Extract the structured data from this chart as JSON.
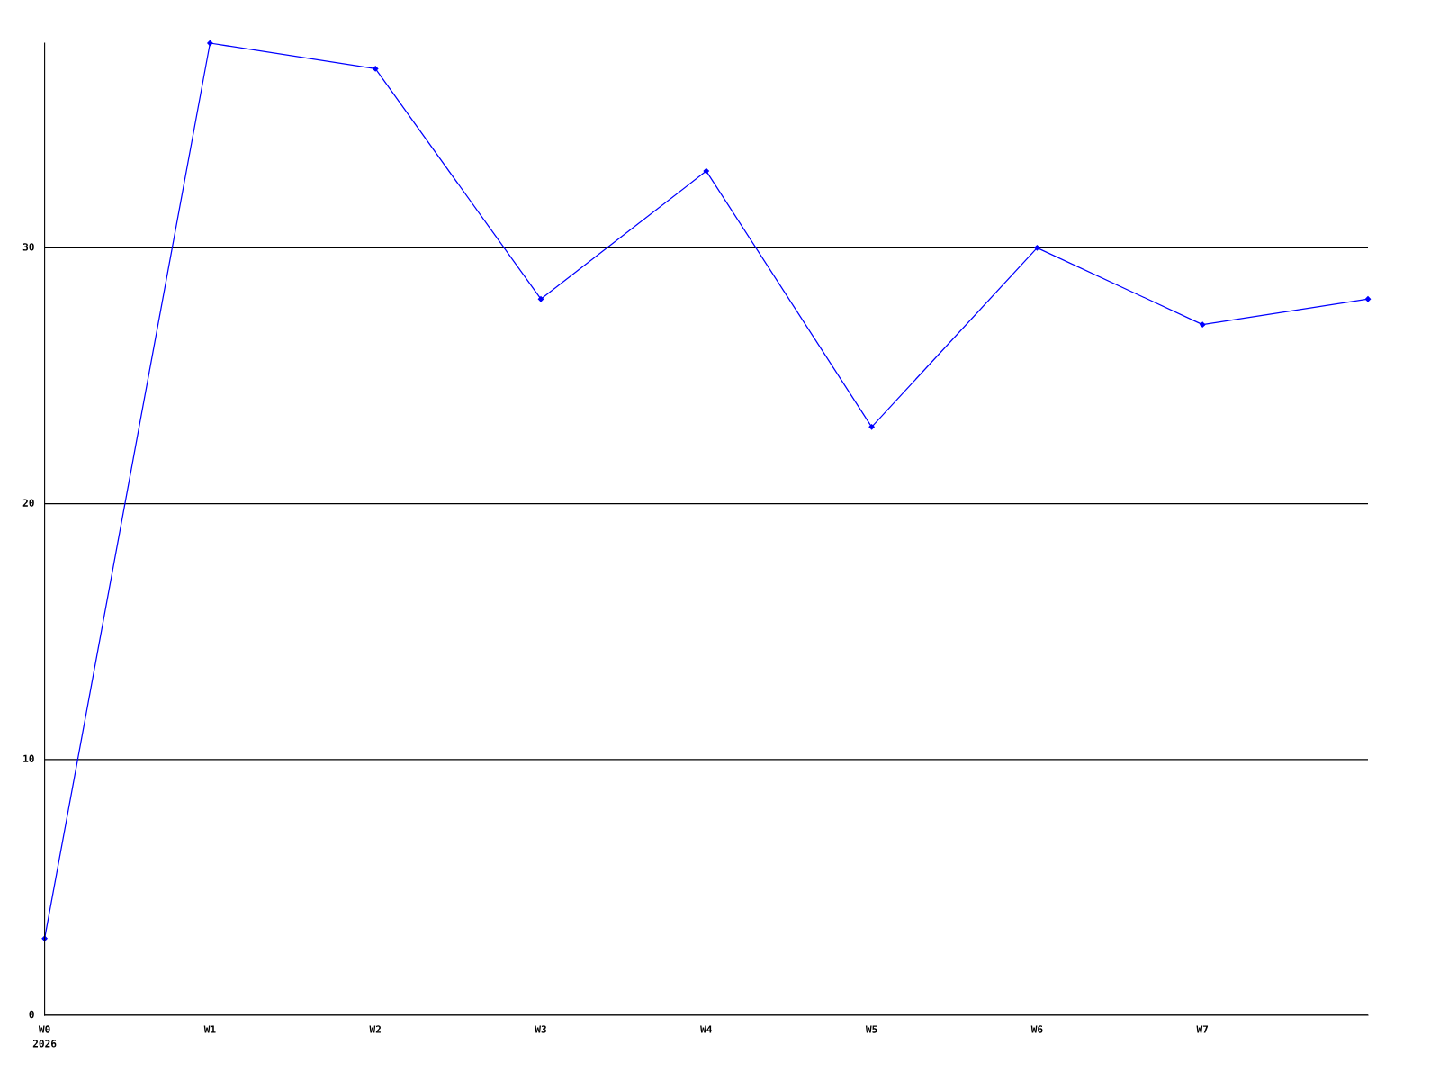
{
  "chart_data": {
    "type": "line",
    "categories": [
      "W0",
      "W1",
      "W2",
      "W3",
      "W4",
      "W5",
      "W6",
      "W7",
      null
    ],
    "series": [
      {
        "color": "#0000ff",
        "values": [
          3,
          38,
          37,
          28,
          33,
          23,
          30,
          27,
          28
        ]
      }
    ],
    "ylim": [
      0,
      38
    ],
    "yticks": [
      0,
      10,
      20,
      30
    ],
    "grid": "y",
    "marker": "diamond",
    "line_style": "solid",
    "legend": false,
    "annotations": [
      "2026"
    ]
  }
}
